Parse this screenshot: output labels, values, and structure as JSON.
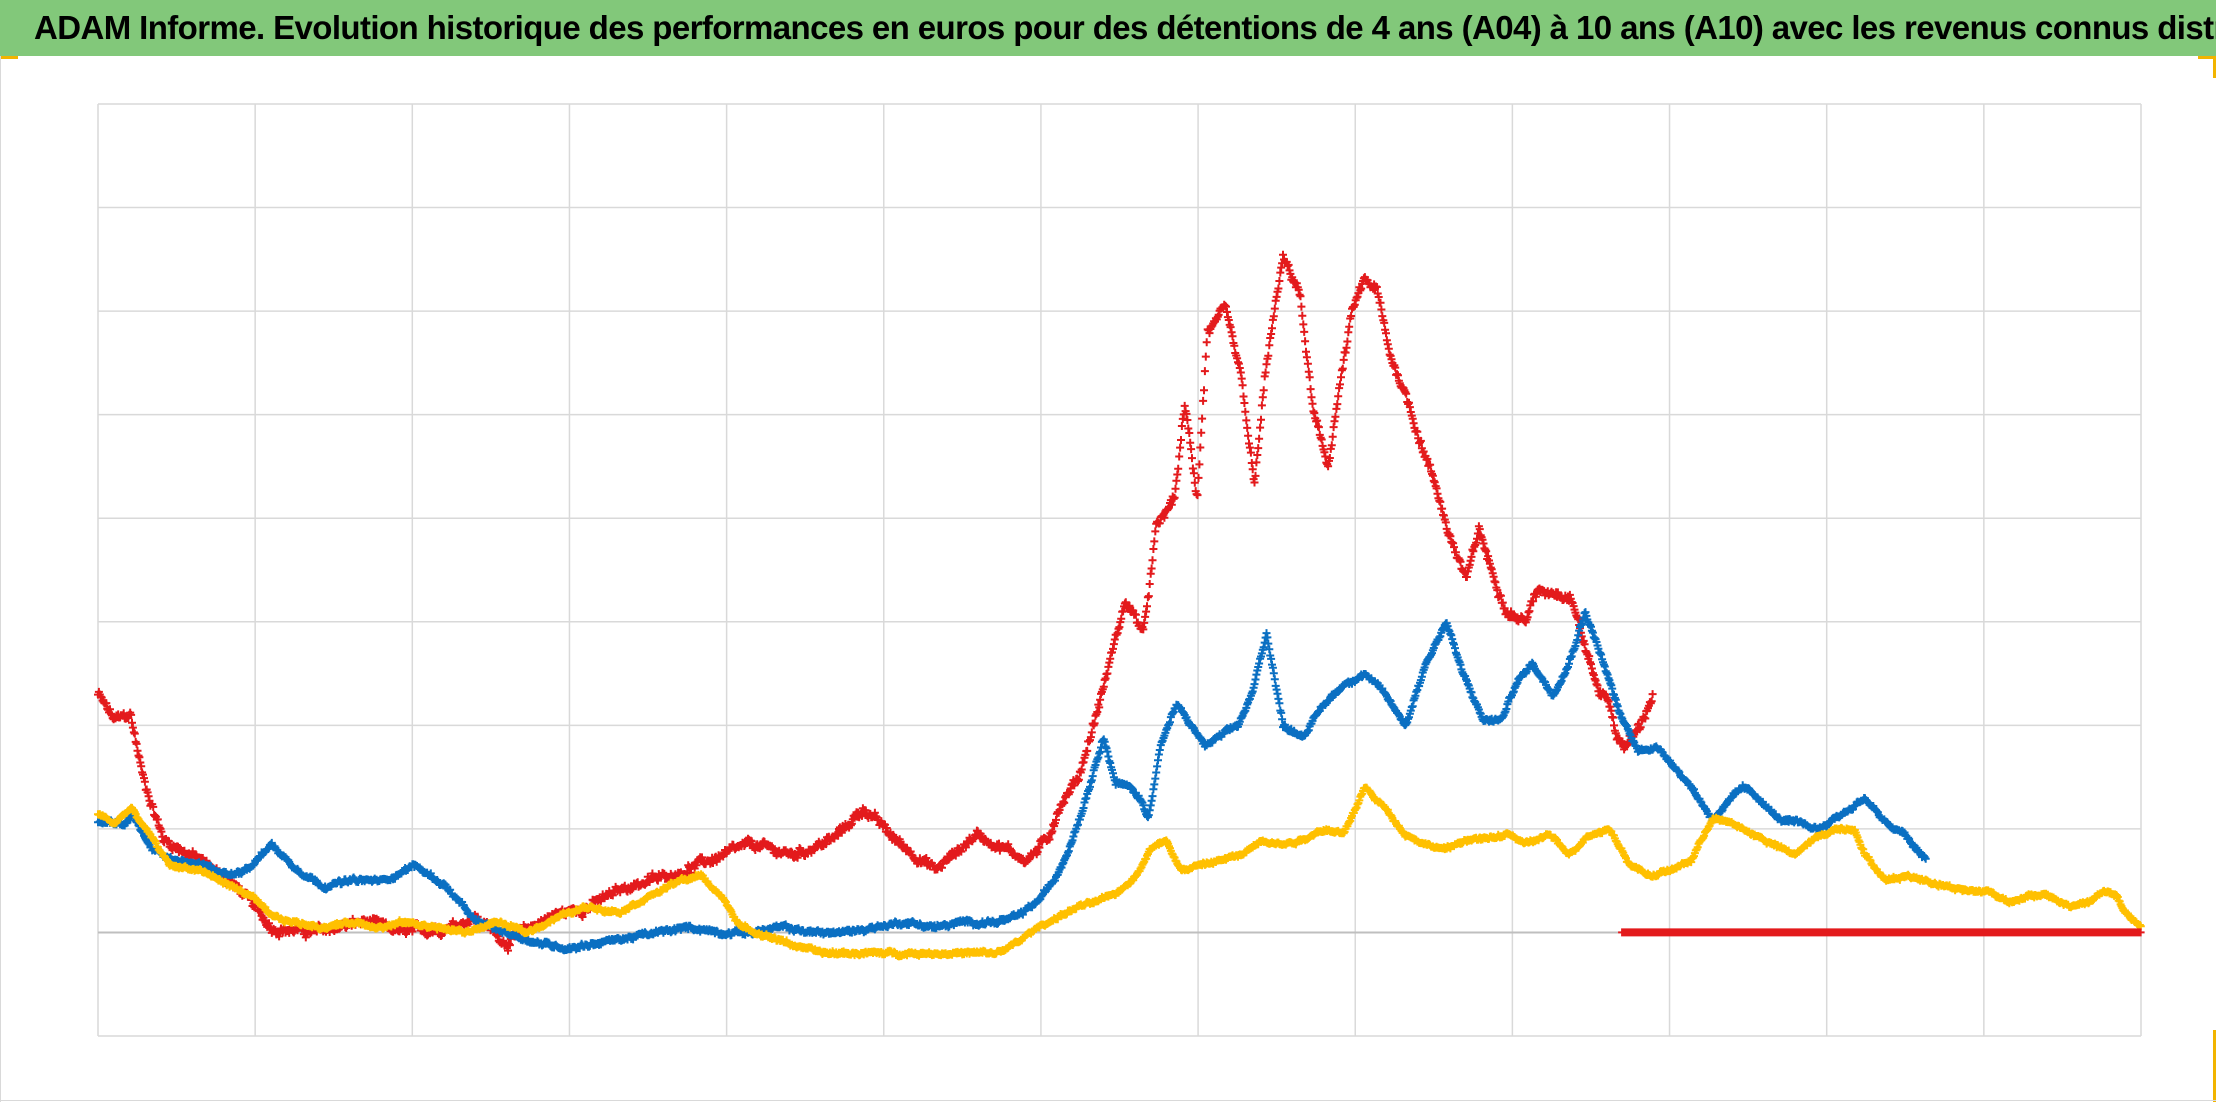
{
  "title": "ADAM Informe. Evolution historique des performances en euros pour des détentions de 4 ans (A04) à 10 ans (A10) avec les revenus connus distribués",
  "colors": {
    "title_background": "#82c87a",
    "grid": "#d9d9d9",
    "zero_line": "#bfbfbf",
    "corner_accent": "#f2b400"
  },
  "chart_data": {
    "type": "scatter",
    "title": "ADAM Informe. Evolution historique des performances en euros pour des détentions de 4 ans (A04) à 10 ans (A10) avec les revenus connus distribués",
    "xlabel": "",
    "ylabel": "",
    "tick_labels_shown": false,
    "legend": "none",
    "grid": true,
    "marker": "plus",
    "xlim": [
      0,
      100
    ],
    "ylim": [
      -1,
      8
    ],
    "x_gridlines": 13,
    "y_gridlines": 9,
    "series": [
      {
        "color": "#e31a1c",
        "noise": 0.05,
        "anchors": [
          [
            0.0,
            2.3
          ],
          [
            0.8,
            2.05
          ],
          [
            1.6,
            2.1
          ],
          [
            2.2,
            1.5
          ],
          [
            3.2,
            0.9
          ],
          [
            5.0,
            0.7
          ],
          [
            7.0,
            0.4
          ],
          [
            8.5,
            0.05
          ],
          [
            10.5,
            0.0
          ],
          [
            13.0,
            0.1
          ],
          [
            15.0,
            0.0
          ],
          [
            17.0,
            0.05
          ],
          [
            18.5,
            0.15
          ],
          [
            20.0,
            -0.1
          ],
          [
            22.0,
            0.15
          ],
          [
            24.0,
            0.25
          ],
          [
            26.0,
            0.45
          ],
          [
            28.0,
            0.55
          ],
          [
            30.0,
            0.7
          ],
          [
            32.0,
            0.85
          ],
          [
            34.0,
            0.75
          ],
          [
            36.0,
            0.9
          ],
          [
            37.5,
            1.2
          ],
          [
            39.0,
            0.9
          ],
          [
            41.0,
            0.6
          ],
          [
            43.0,
            0.95
          ],
          [
            44.5,
            0.8
          ],
          [
            45.5,
            0.7
          ],
          [
            46.5,
            0.9
          ],
          [
            47.0,
            1.2
          ],
          [
            48.0,
            1.5
          ],
          [
            49.0,
            2.2
          ],
          [
            49.5,
            2.6
          ],
          [
            50.3,
            3.2
          ],
          [
            51.2,
            2.9
          ],
          [
            51.8,
            3.9
          ],
          [
            52.7,
            4.2
          ],
          [
            53.2,
            5.1
          ],
          [
            53.8,
            4.2
          ],
          [
            54.3,
            5.8
          ],
          [
            55.2,
            6.0
          ],
          [
            56.0,
            5.3
          ],
          [
            56.6,
            4.3
          ],
          [
            57.2,
            5.5
          ],
          [
            58.0,
            6.5
          ],
          [
            58.8,
            6.2
          ],
          [
            59.5,
            5.0
          ],
          [
            60.2,
            4.5
          ],
          [
            60.8,
            5.3
          ],
          [
            61.4,
            6.0
          ],
          [
            62.0,
            6.3
          ],
          [
            62.6,
            6.2
          ],
          [
            63.2,
            5.6
          ],
          [
            64.0,
            5.2
          ],
          [
            64.8,
            4.7
          ],
          [
            65.5,
            4.3
          ],
          [
            66.2,
            3.8
          ],
          [
            67.0,
            3.4
          ],
          [
            67.6,
            3.9
          ],
          [
            68.2,
            3.5
          ],
          [
            69.0,
            3.1
          ],
          [
            69.8,
            3.0
          ],
          [
            70.5,
            3.3
          ],
          [
            71.3,
            3.3
          ],
          [
            72.1,
            3.25
          ],
          [
            72.8,
            2.75
          ],
          [
            73.5,
            2.3
          ],
          [
            73.9,
            2.3
          ],
          [
            74.3,
            1.9
          ],
          [
            74.8,
            1.8
          ],
          [
            75.5,
            2.0
          ],
          [
            76.1,
            2.3
          ]
        ]
      },
      {
        "color": "#0a6fc2",
        "noise": 0.025,
        "anchors": [
          [
            0.0,
            1.05
          ],
          [
            1.0,
            1.05
          ],
          [
            1.8,
            1.1
          ],
          [
            2.5,
            0.85
          ],
          [
            3.5,
            0.7
          ],
          [
            5.0,
            0.65
          ],
          [
            6.5,
            0.55
          ],
          [
            7.5,
            0.65
          ],
          [
            8.5,
            0.85
          ],
          [
            9.5,
            0.65
          ],
          [
            11.0,
            0.45
          ],
          [
            12.5,
            0.5
          ],
          [
            14.0,
            0.5
          ],
          [
            15.5,
            0.65
          ],
          [
            17.0,
            0.45
          ],
          [
            18.5,
            0.1
          ],
          [
            20.0,
            0.0
          ],
          [
            21.5,
            -0.1
          ],
          [
            23.0,
            -0.15
          ],
          [
            24.5,
            -0.1
          ],
          [
            26.0,
            -0.05
          ],
          [
            27.5,
            0.0
          ],
          [
            29.0,
            0.05
          ],
          [
            30.5,
            0.0
          ],
          [
            32.0,
            0.0
          ],
          [
            33.5,
            0.05
          ],
          [
            35.0,
            0.0
          ],
          [
            36.5,
            0.0
          ],
          [
            38.0,
            0.05
          ],
          [
            39.5,
            0.1
          ],
          [
            41.0,
            0.05
          ],
          [
            42.5,
            0.1
          ],
          [
            44.0,
            0.1
          ],
          [
            45.0,
            0.15
          ],
          [
            46.0,
            0.3
          ],
          [
            46.8,
            0.5
          ],
          [
            47.5,
            0.8
          ],
          [
            48.2,
            1.2
          ],
          [
            48.8,
            1.6
          ],
          [
            49.2,
            1.9
          ],
          [
            49.8,
            1.45
          ],
          [
            50.5,
            1.4
          ],
          [
            51.0,
            1.3
          ],
          [
            51.4,
            1.1
          ],
          [
            52.0,
            1.8
          ],
          [
            52.8,
            2.2
          ],
          [
            53.5,
            2.0
          ],
          [
            54.2,
            1.8
          ],
          [
            55.0,
            1.9
          ],
          [
            55.8,
            2.0
          ],
          [
            56.5,
            2.3
          ],
          [
            57.2,
            2.9
          ],
          [
            58.0,
            2.0
          ],
          [
            59.0,
            1.9
          ],
          [
            60.0,
            2.2
          ],
          [
            61.0,
            2.4
          ],
          [
            62.0,
            2.5
          ],
          [
            63.0,
            2.3
          ],
          [
            64.0,
            2.0
          ],
          [
            65.0,
            2.6
          ],
          [
            66.0,
            3.0
          ],
          [
            66.8,
            2.5
          ],
          [
            67.8,
            2.05
          ],
          [
            68.7,
            2.05
          ],
          [
            69.4,
            2.4
          ],
          [
            70.2,
            2.6
          ],
          [
            71.2,
            2.3
          ],
          [
            72.0,
            2.6
          ],
          [
            72.8,
            3.1
          ],
          [
            73.7,
            2.6
          ],
          [
            74.5,
            2.1
          ],
          [
            75.4,
            1.75
          ],
          [
            76.2,
            1.8
          ],
          [
            77.0,
            1.65
          ],
          [
            78.0,
            1.4
          ],
          [
            79.0,
            1.1
          ],
          [
            79.8,
            1.25
          ],
          [
            80.5,
            1.4
          ],
          [
            81.3,
            1.3
          ],
          [
            82.2,
            1.1
          ],
          [
            83.2,
            1.05
          ],
          [
            84.2,
            1.0
          ],
          [
            85.0,
            1.1
          ],
          [
            85.8,
            1.2
          ],
          [
            86.5,
            1.3
          ],
          [
            87.5,
            1.05
          ],
          [
            88.4,
            0.95
          ],
          [
            89.0,
            0.8
          ],
          [
            89.5,
            0.7
          ]
        ]
      },
      {
        "color": "#ffc000",
        "noise": 0.02,
        "anchors": [
          [
            0.0,
            1.15
          ],
          [
            0.8,
            1.05
          ],
          [
            1.6,
            1.2
          ],
          [
            2.5,
            0.95
          ],
          [
            3.5,
            0.65
          ],
          [
            5.0,
            0.6
          ],
          [
            6.5,
            0.45
          ],
          [
            7.5,
            0.35
          ],
          [
            8.5,
            0.15
          ],
          [
            9.5,
            0.1
          ],
          [
            11.0,
            0.05
          ],
          [
            12.5,
            0.1
          ],
          [
            14.0,
            0.05
          ],
          [
            15.0,
            0.1
          ],
          [
            16.5,
            0.05
          ],
          [
            18.0,
            0.0
          ],
          [
            19.5,
            0.1
          ],
          [
            21.0,
            0.0
          ],
          [
            22.5,
            0.15
          ],
          [
            24.0,
            0.25
          ],
          [
            25.5,
            0.2
          ],
          [
            27.0,
            0.35
          ],
          [
            28.5,
            0.5
          ],
          [
            29.5,
            0.55
          ],
          [
            30.5,
            0.35
          ],
          [
            31.5,
            0.05
          ],
          [
            33.0,
            -0.05
          ],
          [
            34.5,
            -0.15
          ],
          [
            35.5,
            -0.2
          ],
          [
            37.0,
            -0.2
          ],
          [
            38.5,
            -0.2
          ],
          [
            40.0,
            -0.2
          ],
          [
            41.5,
            -0.2
          ],
          [
            43.0,
            -0.2
          ],
          [
            44.0,
            -0.2
          ],
          [
            45.0,
            -0.1
          ],
          [
            46.0,
            0.05
          ],
          [
            47.0,
            0.15
          ],
          [
            48.0,
            0.25
          ],
          [
            49.0,
            0.3
          ],
          [
            50.0,
            0.4
          ],
          [
            50.8,
            0.55
          ],
          [
            51.5,
            0.8
          ],
          [
            52.3,
            0.9
          ],
          [
            53.0,
            0.6
          ],
          [
            54.0,
            0.65
          ],
          [
            55.0,
            0.7
          ],
          [
            56.0,
            0.75
          ],
          [
            57.0,
            0.9
          ],
          [
            58.0,
            0.85
          ],
          [
            59.0,
            0.9
          ],
          [
            60.0,
            1.0
          ],
          [
            61.0,
            0.95
          ],
          [
            62.0,
            1.4
          ],
          [
            63.0,
            1.2
          ],
          [
            64.0,
            0.95
          ],
          [
            65.0,
            0.85
          ],
          [
            66.0,
            0.8
          ],
          [
            67.0,
            0.9
          ],
          [
            68.0,
            0.9
          ],
          [
            69.0,
            0.95
          ],
          [
            70.0,
            0.85
          ],
          [
            71.0,
            0.95
          ],
          [
            72.0,
            0.75
          ],
          [
            73.0,
            0.95
          ],
          [
            74.0,
            1.0
          ],
          [
            75.0,
            0.65
          ],
          [
            76.0,
            0.55
          ],
          [
            77.0,
            0.6
          ],
          [
            78.0,
            0.7
          ],
          [
            79.0,
            1.1
          ],
          [
            80.0,
            1.05
          ],
          [
            81.0,
            0.95
          ],
          [
            82.0,
            0.85
          ],
          [
            83.0,
            0.75
          ],
          [
            84.0,
            0.9
          ],
          [
            85.0,
            1.0
          ],
          [
            86.0,
            1.0
          ],
          [
            86.5,
            0.75
          ],
          [
            87.5,
            0.5
          ],
          [
            88.5,
            0.55
          ],
          [
            89.5,
            0.5
          ],
          [
            90.5,
            0.45
          ],
          [
            91.5,
            0.4
          ],
          [
            92.5,
            0.4
          ],
          [
            93.5,
            0.3
          ],
          [
            94.5,
            0.35
          ],
          [
            95.5,
            0.35
          ],
          [
            96.5,
            0.25
          ],
          [
            97.5,
            0.3
          ],
          [
            98.2,
            0.4
          ],
          [
            98.8,
            0.35
          ],
          [
            99.2,
            0.2
          ],
          [
            100.0,
            0.05
          ]
        ]
      },
      {
        "color": "#e31a1c",
        "noise": 0.0,
        "anchors": [
          [
            74.6,
            0.0
          ],
          [
            100.0,
            0.0
          ]
        ]
      }
    ]
  }
}
